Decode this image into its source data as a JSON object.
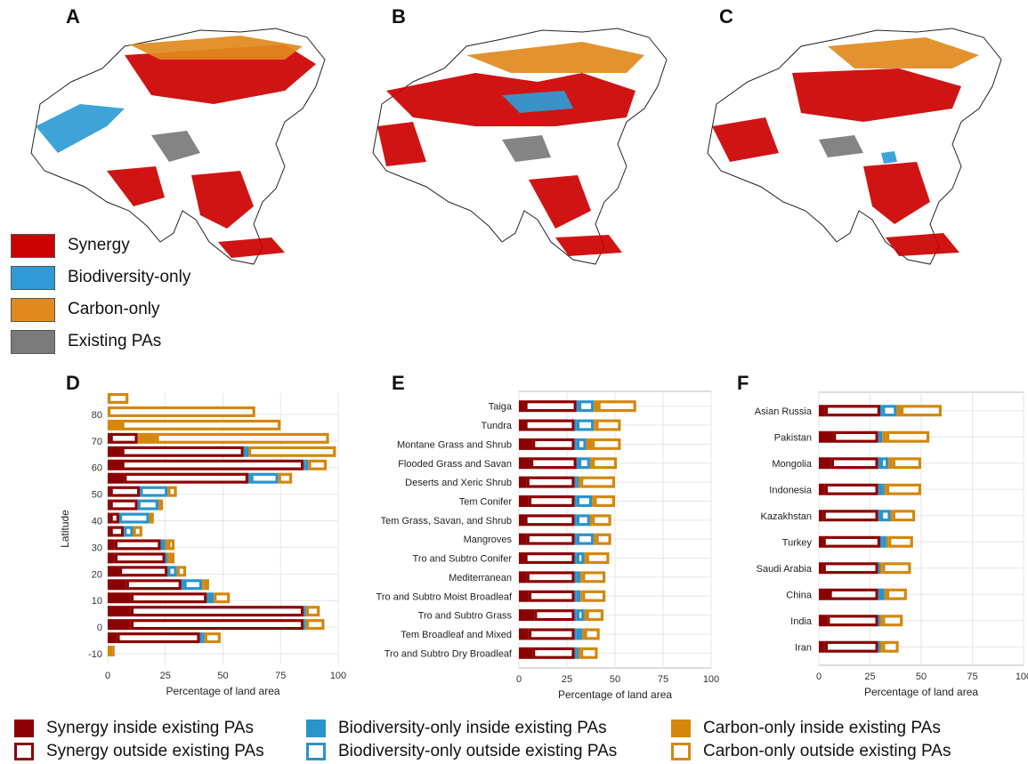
{
  "panels": {
    "A": "A",
    "B": "B",
    "C": "C",
    "D": "D",
    "E": "E",
    "F": "F"
  },
  "colors": {
    "synergy_map": "#cc0000",
    "biodiversity_map": "#2e9bd6",
    "carbon_map": "#e08a1e",
    "existing_pa": "#7a7a7a",
    "synergy_bar": "#8b0000",
    "biodiversity_bar": "#2a93cc",
    "carbon_bar": "#d4870c",
    "land_outline": "#222222",
    "grid": "#e6e6e6"
  },
  "map_legend": [
    {
      "label": "Synergy",
      "color": "#cc0000"
    },
    {
      "label": "Biodiversity-only",
      "color": "#2e9bd6"
    },
    {
      "label": "Carbon-only",
      "color": "#e08a1e"
    },
    {
      "label": "Existing PAs",
      "color": "#7a7a7a"
    }
  ],
  "bottom_legend": [
    {
      "label": "Synergy inside existing PAs",
      "color": "#8b0000",
      "style": "filled"
    },
    {
      "label": "Synergy outside existing PAs",
      "color": "#8b0000",
      "style": "outline"
    },
    {
      "label": "Biodiversity-only inside existing PAs",
      "color": "#2a93cc",
      "style": "filled"
    },
    {
      "label": "Biodiversity-only outside existing PAs",
      "color": "#2a93cc",
      "style": "outline"
    },
    {
      "label": "Carbon-only inside existing PAs",
      "color": "#d4870c",
      "style": "filled"
    },
    {
      "label": "Carbon-only outside existing PAs",
      "color": "#d4870c",
      "style": "outline"
    }
  ],
  "chart_data": [
    {
      "panel": "D",
      "type": "bar",
      "orientation": "horizontal",
      "stacked": true,
      "xlabel": "Percentage of land area",
      "ylabel": "Latitude",
      "xlim": [
        0,
        100
      ],
      "xticks": [
        "0",
        "25",
        "50",
        "75",
        "100"
      ],
      "ylim": [
        -12,
        86
      ],
      "yticks": [
        "-10",
        "0",
        "10",
        "20",
        "30",
        "40",
        "50",
        "60",
        "70",
        "80"
      ],
      "grid": true,
      "categories": [
        -9,
        -4,
        1,
        6,
        11,
        16,
        21,
        26,
        31,
        36,
        41,
        46,
        51,
        56,
        61,
        66,
        71,
        76,
        81,
        86
      ],
      "segments_order": [
        "Synergy inside existing PAs",
        "Synergy outside existing PAs",
        "Biodiversity-only inside existing PAs",
        "Biodiversity-only outside existing PAs",
        "Carbon-only inside existing PAs",
        "Carbon-only outside existing PAs"
      ],
      "rows": [
        [
          0,
          0,
          0,
          0,
          2,
          1
        ],
        [
          4,
          36,
          1,
          1,
          0,
          7
        ],
        [
          10,
          75,
          0,
          1,
          0,
          8
        ],
        [
          10,
          75,
          0,
          1,
          0,
          6
        ],
        [
          10,
          33,
          1,
          2,
          0,
          7
        ],
        [
          8,
          24,
          1,
          8,
          1,
          2
        ],
        [
          5,
          21,
          0,
          4,
          0,
          4
        ],
        [
          3,
          22,
          0,
          1,
          1,
          2
        ],
        [
          3,
          20,
          0,
          2,
          1,
          3
        ],
        [
          1,
          6,
          0,
          4,
          0,
          4
        ],
        [
          1,
          4,
          0,
          13,
          0,
          2
        ],
        [
          1,
          12,
          0,
          9,
          0,
          2
        ],
        [
          1,
          13,
          0,
          12,
          0,
          4
        ],
        [
          7,
          54,
          1,
          12,
          0,
          6
        ],
        [
          6,
          79,
          1,
          1,
          0,
          8
        ],
        [
          6,
          53,
          1,
          1,
          0,
          38
        ],
        [
          1,
          12,
          0,
          0,
          8,
          75
        ],
        [
          0,
          0,
          0,
          0,
          6,
          69
        ],
        [
          0,
          0,
          0,
          0,
          0,
          64
        ],
        [
          0,
          0,
          0,
          0,
          0,
          9
        ]
      ]
    },
    {
      "panel": "E",
      "type": "bar",
      "orientation": "horizontal",
      "stacked": true,
      "xlabel": "Percentage of land area",
      "xlim": [
        0,
        100
      ],
      "xticks": [
        "0",
        "25",
        "50",
        "75",
        "100"
      ],
      "grid": true,
      "categories": [
        "Taiga",
        "Tundra",
        "Montane Grass and Shrub",
        "Flooded Grass and Savan",
        "Deserts and Xeric Shrub",
        "Tem Conifer",
        "Tem Grass, Savan, and Shrub",
        "Mangroves",
        "Tro and Subtro Conifer",
        "Mediterranean",
        "Tro and Subtro Moist Broadleaf",
        "Tro and Subtro Grass",
        "Tem Broadleaf and Mixed",
        "Tro and Subtro Dry Broadleaf"
      ],
      "rows": [
        [
          3,
          27,
          1,
          8,
          2,
          20
        ],
        [
          3,
          26,
          1,
          9,
          1,
          13
        ],
        [
          7,
          22,
          1,
          5,
          3,
          15
        ],
        [
          6,
          24,
          1,
          6,
          1,
          13
        ],
        [
          4,
          25,
          1,
          1,
          1,
          18
        ],
        [
          5,
          24,
          1,
          8,
          1,
          11
        ],
        [
          3,
          26,
          1,
          7,
          1,
          10
        ],
        [
          4,
          25,
          1,
          9,
          1,
          8
        ],
        [
          3,
          26,
          1,
          4,
          1,
          12
        ],
        [
          4,
          25,
          1,
          2,
          1,
          12
        ],
        [
          5,
          24,
          1,
          2,
          1,
          12
        ],
        [
          8,
          21,
          1,
          4,
          1,
          9
        ],
        [
          5,
          24,
          1,
          3,
          1,
          8
        ],
        [
          7,
          22,
          1,
          1,
          1,
          9
        ]
      ]
    },
    {
      "panel": "F",
      "type": "bar",
      "orientation": "horizontal",
      "stacked": true,
      "xlabel": "Percentage of land area",
      "xlim": [
        0,
        100
      ],
      "xticks": [
        "0",
        "25",
        "50",
        "75",
        "100"
      ],
      "grid": true,
      "categories": [
        "Asian Russia",
        "Pakistan",
        "Mongolia",
        "Indonesia",
        "Kazakhstan",
        "Turkey",
        "Saudi Arabia",
        "China",
        "India",
        "Iran"
      ],
      "rows": [
        [
          3,
          27,
          1,
          7,
          2,
          20
        ],
        [
          7,
          22,
          1,
          1,
          2,
          21
        ],
        [
          6,
          23,
          1,
          4,
          2,
          14
        ],
        [
          3,
          26,
          2,
          1,
          1,
          17
        ],
        [
          2,
          27,
          1,
          5,
          1,
          11
        ],
        [
          2,
          28,
          1,
          2,
          1,
          12
        ],
        [
          2,
          27,
          0,
          1,
          1,
          14
        ],
        [
          5,
          24,
          1,
          2,
          1,
          10
        ],
        [
          4,
          25,
          0,
          1,
          1,
          10
        ],
        [
          3,
          26,
          0,
          1,
          1,
          8
        ]
      ]
    }
  ]
}
